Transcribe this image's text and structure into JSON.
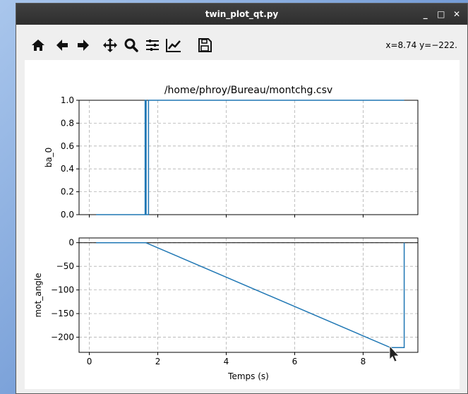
{
  "window": {
    "title": "twin_plot_qt.py",
    "controls": {
      "minimize": "_",
      "maximize": "□",
      "close": "✕"
    }
  },
  "toolbar": {
    "buttons": [
      "home-icon",
      "back-icon",
      "forward-icon",
      "pan-icon",
      "zoom-icon",
      "subplots-icon",
      "edit-curves-icon",
      "save-icon"
    ],
    "coords": "x=8.74 y=−222."
  },
  "colors": {
    "line": "#1f77b4",
    "grid": "#b0b0b0"
  },
  "chart_data": [
    {
      "type": "line",
      "title": "/home/phroy/Bureau/montchg.csv",
      "ylabel": "ba_0",
      "xlabel": "",
      "xlim": [
        -0.3,
        9.6
      ],
      "ylim": [
        0,
        1
      ],
      "xticks": [
        0,
        2,
        4,
        6,
        8
      ],
      "yticks": [
        "0.0",
        "0.2",
        "0.4",
        "0.6",
        "0.8",
        "1.0"
      ],
      "grid": true,
      "series": [
        {
          "x": [
            0.2,
            1.63,
            1.63,
            1.66,
            1.66,
            1.73,
            1.73,
            9.2
          ],
          "y": [
            0,
            0,
            1,
            1,
            0,
            0,
            1,
            1
          ]
        }
      ]
    },
    {
      "type": "line",
      "ylabel": "mot_angle",
      "xlabel": "Temps (s)",
      "xlim": [
        -0.3,
        9.6
      ],
      "ylim": [
        -232,
        10
      ],
      "xticks": [
        "0",
        "2",
        "4",
        "6",
        "8"
      ],
      "yticks": [
        "0",
        "−50",
        "−100",
        "−150",
        "−200"
      ],
      "grid": true,
      "hline": 0,
      "series": [
        {
          "x": [
            0.2,
            1.65,
            8.8,
            9.2,
            9.2
          ],
          "y": [
            0,
            0,
            -222,
            -222,
            0
          ]
        }
      ]
    }
  ]
}
